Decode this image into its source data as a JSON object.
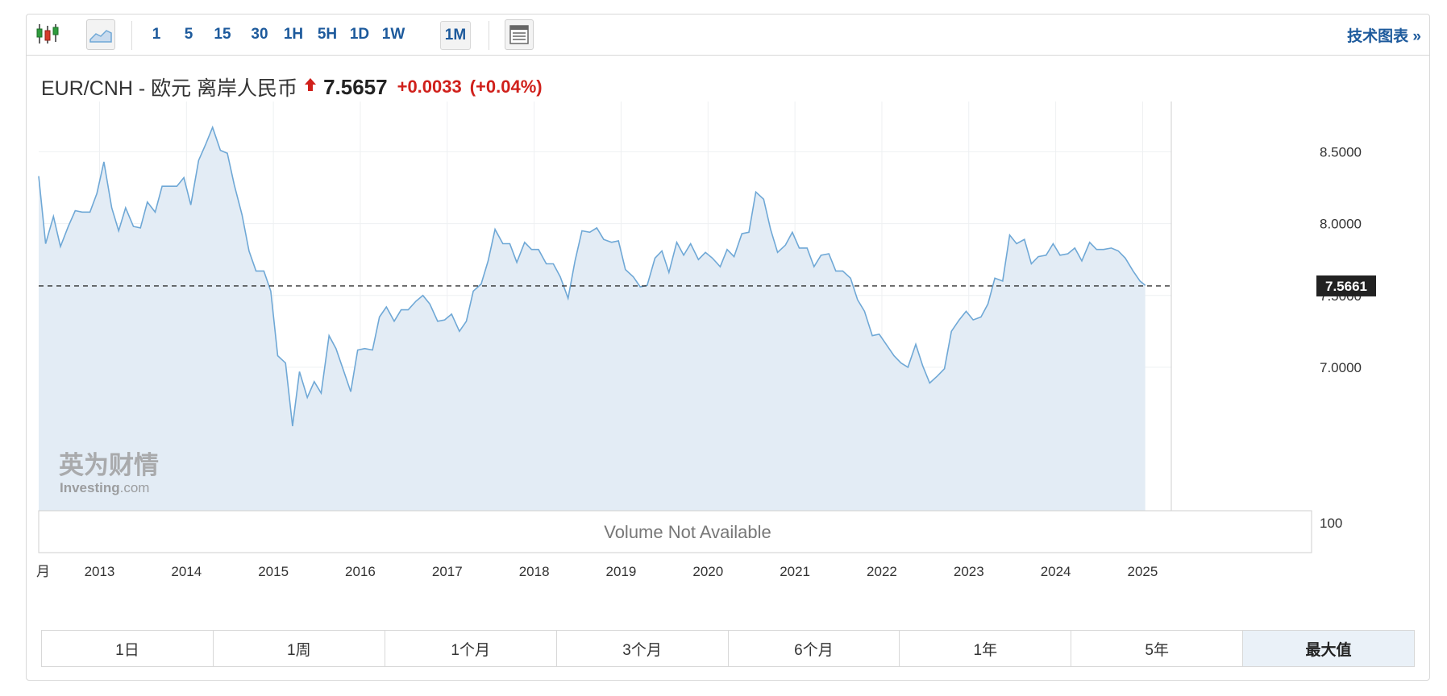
{
  "toolbar": {
    "intervals": [
      "1",
      "5",
      "15",
      "30",
      "1H",
      "5H",
      "1D",
      "1W",
      "1M"
    ],
    "active_interval": "1M",
    "tech_chart_label": "技术图表 »"
  },
  "quote": {
    "pair": "EUR/CNH - 欧元 离岸人民币",
    "direction_icon": "up-arrow-icon",
    "price": "7.5657",
    "change": "+0.0033",
    "change_pct": "(+0.04%)",
    "change_color": "#d0201b"
  },
  "chart": {
    "volume_text": "Volume Not Available",
    "volume_axis_label": "100",
    "current_value_label": "7.5661",
    "watermark_cn": "英为财情",
    "watermark_en": "Investing",
    "watermark_suffix": ".com",
    "line_color": "#6fa8d6",
    "area_color": "#e3ecf5"
  },
  "periods": [
    "1日",
    "1周",
    "1个月",
    "3个月",
    "6个月",
    "1年",
    "5年",
    "最大值"
  ],
  "active_period": "最大值",
  "chart_data": {
    "type": "area",
    "title": "",
    "xlabel": "",
    "ylabel": "",
    "y_ticks": [
      "7.0000",
      "7.5000",
      "8.0000",
      "8.5000"
    ],
    "x_ticks": [
      "月",
      "2013",
      "2014",
      "2015",
      "2016",
      "2017",
      "2018",
      "2019",
      "2020",
      "2021",
      "2022",
      "2023",
      "2024",
      "2025"
    ],
    "ylim": [
      6.45,
      8.85
    ],
    "xlim": [
      2012.3,
      2025.2
    ],
    "reference_line": 7.5661,
    "grid": true,
    "series": [
      {
        "x": [
          2012.3,
          2012.38,
          2012.47,
          2012.55,
          2012.64,
          2012.72,
          2012.8,
          2012.89,
          2012.97,
          2013.05,
          2013.14,
          2013.22,
          2013.3,
          2013.39,
          2013.47,
          2013.55,
          2013.64,
          2013.72,
          2013.8,
          2013.89,
          2013.97,
          2014.05,
          2014.14,
          2014.22,
          2014.3,
          2014.39,
          2014.47,
          2014.55,
          2014.64,
          2014.72,
          2014.8,
          2014.89,
          2014.97,
          2015.05,
          2015.14,
          2015.22,
          2015.3,
          2015.39,
          2015.47,
          2015.55,
          2015.64,
          2015.72,
          2015.8,
          2015.89,
          2015.97,
          2016.05,
          2016.14,
          2016.22,
          2016.3,
          2016.39,
          2016.47,
          2016.55,
          2016.64,
          2016.72,
          2016.8,
          2016.89,
          2016.97,
          2017.05,
          2017.14,
          2017.22,
          2017.3,
          2017.39,
          2017.47,
          2017.55,
          2017.64,
          2017.72,
          2017.8,
          2017.89,
          2017.97,
          2018.05,
          2018.14,
          2018.22,
          2018.3,
          2018.39,
          2018.47,
          2018.55,
          2018.64,
          2018.72,
          2018.8,
          2018.89,
          2018.97,
          2019.05,
          2019.14,
          2019.22,
          2019.3,
          2019.39,
          2019.47,
          2019.55,
          2019.64,
          2019.72,
          2019.8,
          2019.89,
          2019.97,
          2020.05,
          2020.14,
          2020.22,
          2020.3,
          2020.39,
          2020.47,
          2020.55,
          2020.64,
          2020.72,
          2020.8,
          2020.89,
          2020.97,
          2021.05,
          2021.14,
          2021.22,
          2021.3,
          2021.39,
          2021.47,
          2021.55,
          2021.64,
          2021.72,
          2021.8,
          2021.89,
          2021.97,
          2022.05,
          2022.14,
          2022.22,
          2022.3,
          2022.39,
          2022.47,
          2022.55,
          2022.64,
          2022.72,
          2022.8,
          2022.89,
          2022.97,
          2023.05,
          2023.14,
          2023.22,
          2023.3,
          2023.39,
          2023.47,
          2023.55,
          2023.64,
          2023.72,
          2023.8,
          2023.89,
          2023.97,
          2024.05,
          2024.14,
          2024.22,
          2024.3,
          2024.39,
          2024.47,
          2024.55,
          2024.64,
          2024.72,
          2024.8,
          2024.89,
          2024.97,
          2025.03
        ],
        "values": [
          8.33,
          7.86,
          8.05,
          7.84,
          7.98,
          8.09,
          8.08,
          8.08,
          8.21,
          8.43,
          8.11,
          7.95,
          8.11,
          7.98,
          7.97,
          8.15,
          8.08,
          8.26,
          8.26,
          8.26,
          8.32,
          8.13,
          8.44,
          8.55,
          8.67,
          8.51,
          8.49,
          8.27,
          8.06,
          7.81,
          7.67,
          7.67,
          7.53,
          7.08,
          7.03,
          6.59,
          6.97,
          6.79,
          6.9,
          6.82,
          7.22,
          7.13,
          6.99,
          6.83,
          7.12,
          7.13,
          7.12,
          7.35,
          7.42,
          7.32,
          7.4,
          7.4,
          7.46,
          7.5,
          7.44,
          7.32,
          7.33,
          7.37,
          7.25,
          7.32,
          7.53,
          7.58,
          7.74,
          7.96,
          7.86,
          7.86,
          7.73,
          7.87,
          7.82,
          7.82,
          7.72,
          7.72,
          7.63,
          7.48,
          7.74,
          7.95,
          7.94,
          7.97,
          7.89,
          7.87,
          7.88,
          7.68,
          7.63,
          7.56,
          7.57,
          7.76,
          7.81,
          7.66,
          7.87,
          7.78,
          7.86,
          7.75,
          7.8,
          7.76,
          7.7,
          7.82,
          7.77,
          7.93,
          7.94,
          8.22,
          8.17,
          7.96,
          7.8,
          7.85,
          7.94,
          7.83,
          7.83,
          7.7,
          7.78,
          7.79,
          7.67,
          7.67,
          7.62,
          7.47,
          7.39,
          7.22,
          7.23,
          7.16,
          7.08,
          7.03,
          7.0,
          7.16,
          7.01,
          6.89,
          6.94,
          6.99,
          7.25,
          7.33,
          7.39,
          7.33,
          7.35,
          7.44,
          7.62,
          7.6,
          7.92,
          7.86,
          7.89,
          7.72,
          7.77,
          7.78,
          7.86,
          7.78,
          7.79,
          7.83,
          7.74,
          7.87,
          7.82,
          7.82,
          7.83,
          7.81,
          7.76,
          7.67,
          7.6,
          7.57
        ]
      }
    ]
  }
}
